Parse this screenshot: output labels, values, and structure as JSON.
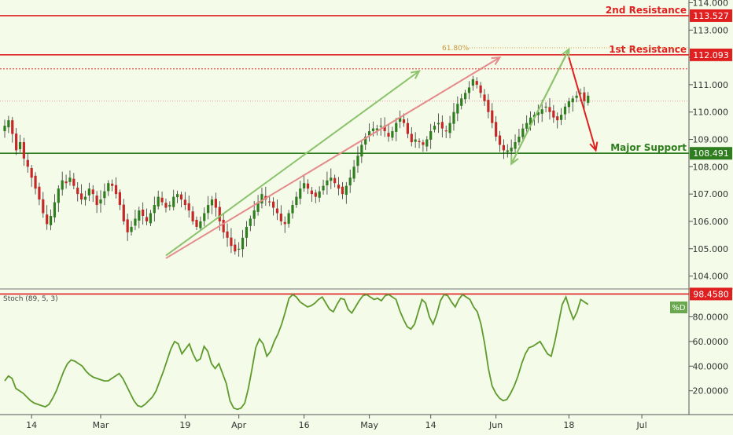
{
  "chart_data": [
    {
      "type": "candlestick",
      "title": "",
      "y_ticks": [
        "114.000",
        "113.000",
        "112.000",
        "111.000",
        "110.000",
        "109.000",
        "108.000",
        "107.000",
        "106.000",
        "105.000",
        "104.000"
      ],
      "ylim": [
        103.7,
        114.1
      ],
      "x_ticks": [
        "14",
        "Mar",
        "19",
        "Apr",
        "16",
        "May",
        "14",
        "Jun",
        "18",
        "Jul"
      ],
      "levels": [
        {
          "name": "2nd Resistance",
          "value": 113.527,
          "price_label": "113.527",
          "color": "#e02020"
        },
        {
          "name": "1st Resistance",
          "value": 112.093,
          "price_label": "112.093",
          "color": "#e02020"
        },
        {
          "name": "Major Support",
          "value": 108.491,
          "price_label": "108.491",
          "color": "#2e7d1e"
        }
      ],
      "fib_label": "61.80%",
      "close_series": [
        109.5,
        109.7,
        109.2,
        108.6,
        108.9,
        108.3,
        108.0,
        107.6,
        107.2,
        106.8,
        106.3,
        105.9,
        106.2,
        106.7,
        107.2,
        107.5,
        107.4,
        107.6,
        107.3,
        107.0,
        106.8,
        106.9,
        107.2,
        107.0,
        106.6,
        106.8,
        107.1,
        107.4,
        107.3,
        107.0,
        106.6,
        106.0,
        105.6,
        105.8,
        106.1,
        106.4,
        106.2,
        106.0,
        106.3,
        106.6,
        106.9,
        106.7,
        106.5,
        106.6,
        106.9,
        107.0,
        106.8,
        106.6,
        106.4,
        106.0,
        105.8,
        106.0,
        106.3,
        106.6,
        106.8,
        106.5,
        106.0,
        105.6,
        105.4,
        105.1,
        104.9,
        105.0,
        105.4,
        105.8,
        106.1,
        106.4,
        106.7,
        107.0,
        106.8,
        106.7,
        106.5,
        106.3,
        106.0,
        105.9,
        106.3,
        106.6,
        106.9,
        107.2,
        107.4,
        107.2,
        107.0,
        106.9,
        107.1,
        107.3,
        107.5,
        107.6,
        107.4,
        107.2,
        107.0,
        107.3,
        107.6,
        108.0,
        108.4,
        108.8,
        109.1,
        109.3,
        109.4,
        109.4,
        109.5,
        109.3,
        109.1,
        109.3,
        109.6,
        109.8,
        109.6,
        109.2,
        108.9,
        109.0,
        108.9,
        108.8,
        109.0,
        109.3,
        109.5,
        109.6,
        109.4,
        109.3,
        109.6,
        110.0,
        110.3,
        110.5,
        110.7,
        110.9,
        111.2,
        111.0,
        110.7,
        110.4,
        110.0,
        109.6,
        109.1,
        108.8,
        108.6,
        108.6,
        108.7,
        108.9,
        109.1,
        109.4,
        109.6,
        109.8,
        109.9,
        110.0,
        110.1,
        110.2,
        110.0,
        109.8,
        109.7,
        109.9,
        110.2,
        110.4,
        110.5,
        110.6,
        110.7,
        110.4,
        110.6
      ],
      "pattern_arrows": [
        {
          "from": [
            42,
            104.65
          ],
          "to": [
            129,
            112.0
          ],
          "color": "#e58a8a"
        },
        {
          "from": [
            42,
            104.75
          ],
          "to": [
            108,
            111.5
          ],
          "color": "#8bc26b"
        },
        {
          "from": [
            132,
            108.1
          ],
          "to": [
            147,
            112.3
          ],
          "color": "#8bc26b"
        },
        {
          "from": [
            147,
            112.3
          ],
          "to": [
            147,
            112.3
          ],
          "color": "#8bc26b"
        },
        {
          "from": [
            147,
            112.0
          ],
          "to": [
            154,
            108.6
          ],
          "color": "#e02020"
        }
      ]
    },
    {
      "type": "line",
      "title": "Stoch (89, 5, 3)",
      "series": [
        {
          "name": "%D",
          "values": [
            28,
            32,
            30,
            22,
            20,
            18,
            15,
            12,
            10,
            9,
            8,
            7,
            9,
            14,
            20,
            28,
            36,
            42,
            45,
            44,
            42,
            40,
            36,
            33,
            31,
            30,
            29,
            28,
            28,
            30,
            32,
            34,
            30,
            24,
            18,
            12,
            8,
            7,
            9,
            12,
            15,
            20,
            28,
            36,
            45,
            54,
            60,
            58,
            50,
            54,
            58,
            50,
            44,
            46,
            56,
            52,
            42,
            38,
            42,
            34,
            26,
            12,
            6,
            5,
            6,
            10,
            22,
            38,
            55,
            62,
            58,
            48,
            52,
            60,
            66,
            74,
            84,
            95,
            98,
            96,
            92,
            90,
            88,
            89,
            91,
            94,
            96,
            91,
            86,
            84,
            90,
            95,
            94,
            86,
            83,
            88,
            93,
            97,
            98,
            96,
            94,
            95,
            93,
            97,
            98,
            96,
            94,
            85,
            78,
            72,
            70,
            74,
            84,
            94,
            91,
            80,
            74,
            82,
            93,
            98,
            97,
            92,
            88,
            94,
            98,
            96,
            94,
            88,
            84,
            74,
            58,
            38,
            24,
            18,
            14,
            12,
            13,
            18,
            24,
            32,
            42,
            50,
            55,
            56,
            58,
            60,
            55,
            50,
            48,
            60,
            75,
            90,
            96,
            86,
            78,
            84,
            94,
            92,
            90
          ]
        }
      ],
      "y_ticks": [
        "80.0000",
        "60.0000",
        "40.0000",
        "20.0000"
      ],
      "ylim": [
        2,
        100
      ],
      "level": {
        "value": 98.458,
        "label": "98.4580"
      }
    }
  ]
}
